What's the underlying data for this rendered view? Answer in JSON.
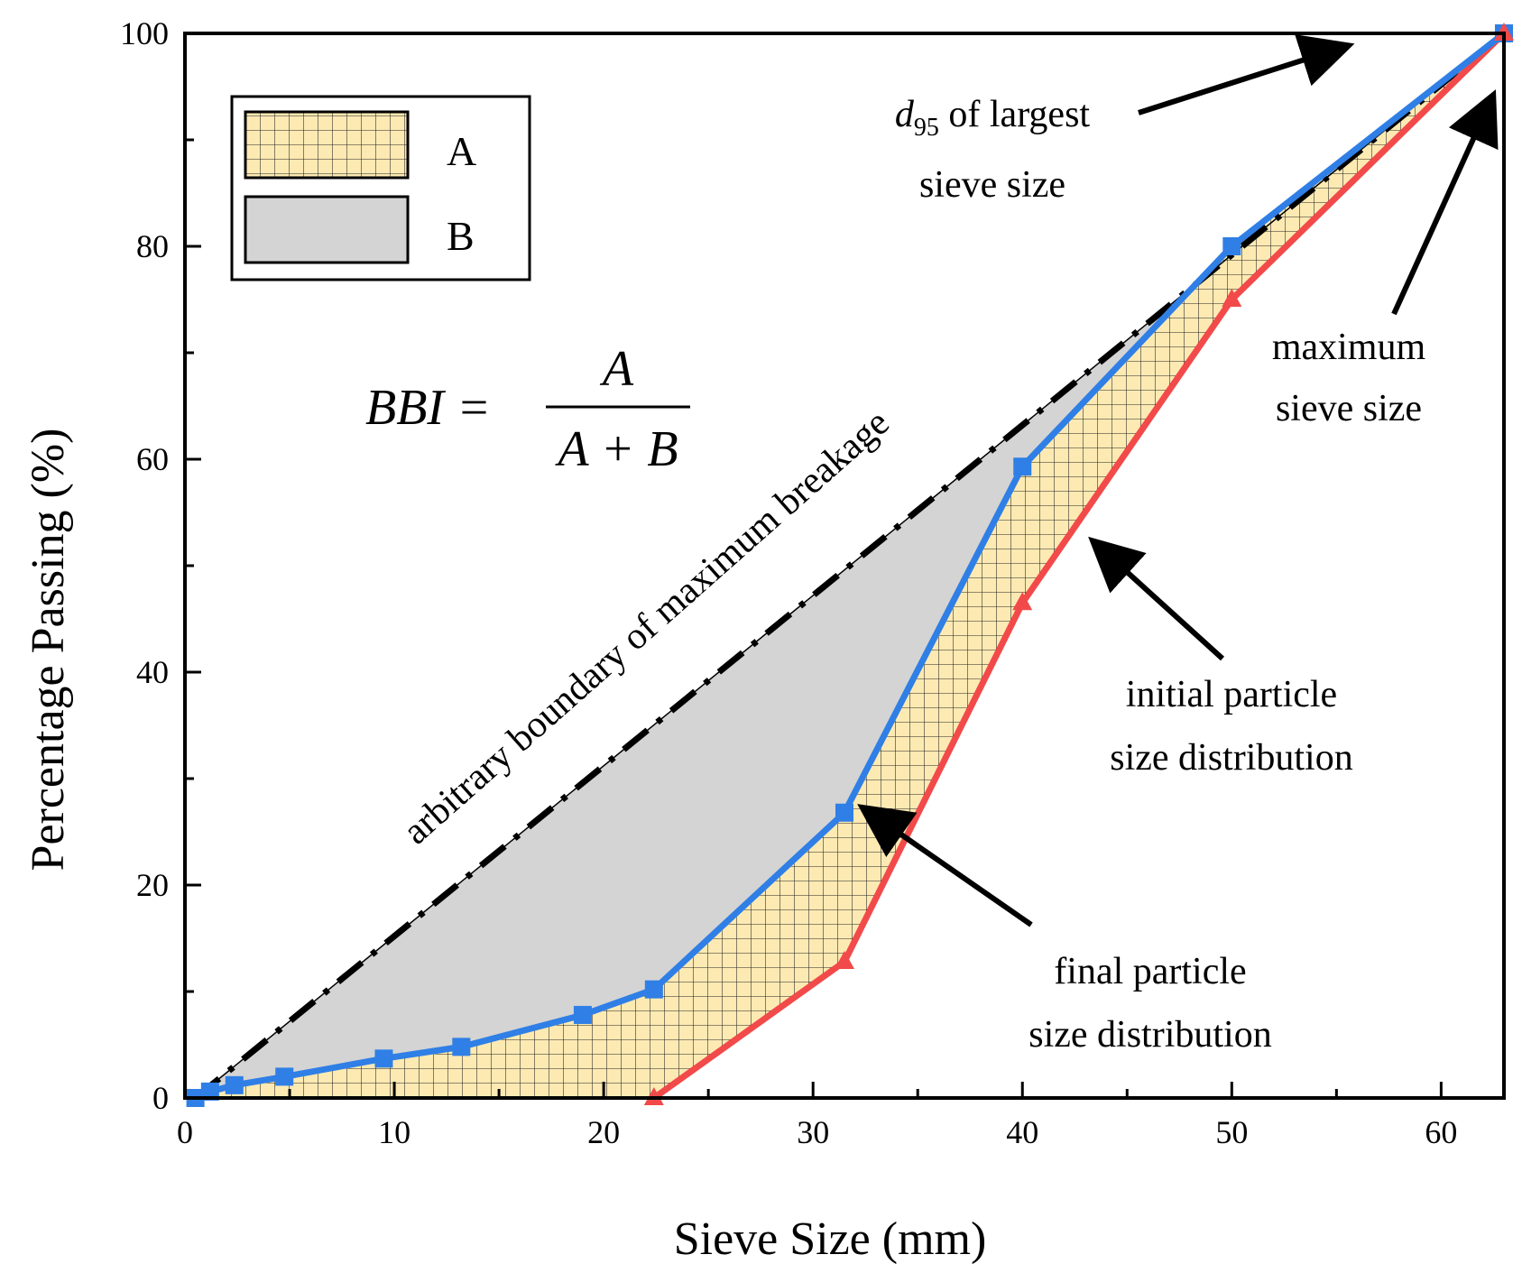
{
  "chart_data": {
    "type": "line",
    "title": "",
    "xlabel": "Sieve Size (mm)",
    "ylabel": "Percentage Passing (%)",
    "xlim": [
      0,
      63
    ],
    "ylim": [
      0,
      100
    ],
    "xticks": [
      "0",
      "10",
      "20",
      "30",
      "40",
      "50",
      "60"
    ],
    "yticks": [
      "0",
      "20",
      "40",
      "60",
      "80",
      "100"
    ],
    "series": [
      {
        "name": "final particle size distribution",
        "color": "#2f7fe6",
        "marker": "square",
        "x": [
          0.5,
          1.2,
          2.36,
          4.75,
          9.5,
          13.2,
          19,
          22.4,
          31.5,
          40,
          50,
          63
        ],
        "y": [
          0,
          0.6,
          1.2,
          2,
          3.7,
          4.8,
          7.8,
          10.2,
          26.8,
          59.3,
          80,
          100
        ]
      },
      {
        "name": "initial particle size distribution",
        "color": "#f24a4a",
        "marker": "triangle",
        "x": [
          22.4,
          31.5,
          40,
          50,
          63
        ],
        "y": [
          0,
          12.8,
          46.5,
          75,
          100
        ]
      },
      {
        "name": "arbitrary boundary of maximum breakage",
        "color": "#000000",
        "style": "dash-dot",
        "x": [
          0.5,
          63
        ],
        "y": [
          0,
          100
        ]
      }
    ],
    "areas": [
      {
        "label": "A",
        "color": "#fdeab3",
        "pattern": "grid",
        "between": [
          "final particle size distribution",
          "initial particle size distribution"
        ]
      },
      {
        "label": "B",
        "color": "#d4d4d4",
        "between": [
          "arbitrary boundary of maximum breakage",
          "final particle size distribution"
        ]
      }
    ],
    "legend": {
      "placement": "top-left",
      "entries": [
        "A",
        "B"
      ]
    },
    "formula": {
      "lhs": "BBI =",
      "numerator": "A",
      "denominator": "A + B"
    },
    "annotations": {
      "boundary": "arbitrary boundary of maximum breakage",
      "d95_line1_sym": "d",
      "d95_line1_sub": "95",
      "d95_line1_rest": " of largest",
      "d95_line2": "sieve size",
      "maxsieve_line1": "maximum",
      "maxsieve_line2": "sieve size",
      "initial_line1": "initial particle",
      "initial_line2": "size distribution",
      "final_line1": "final particle",
      "final_line2": "size distribution"
    }
  }
}
